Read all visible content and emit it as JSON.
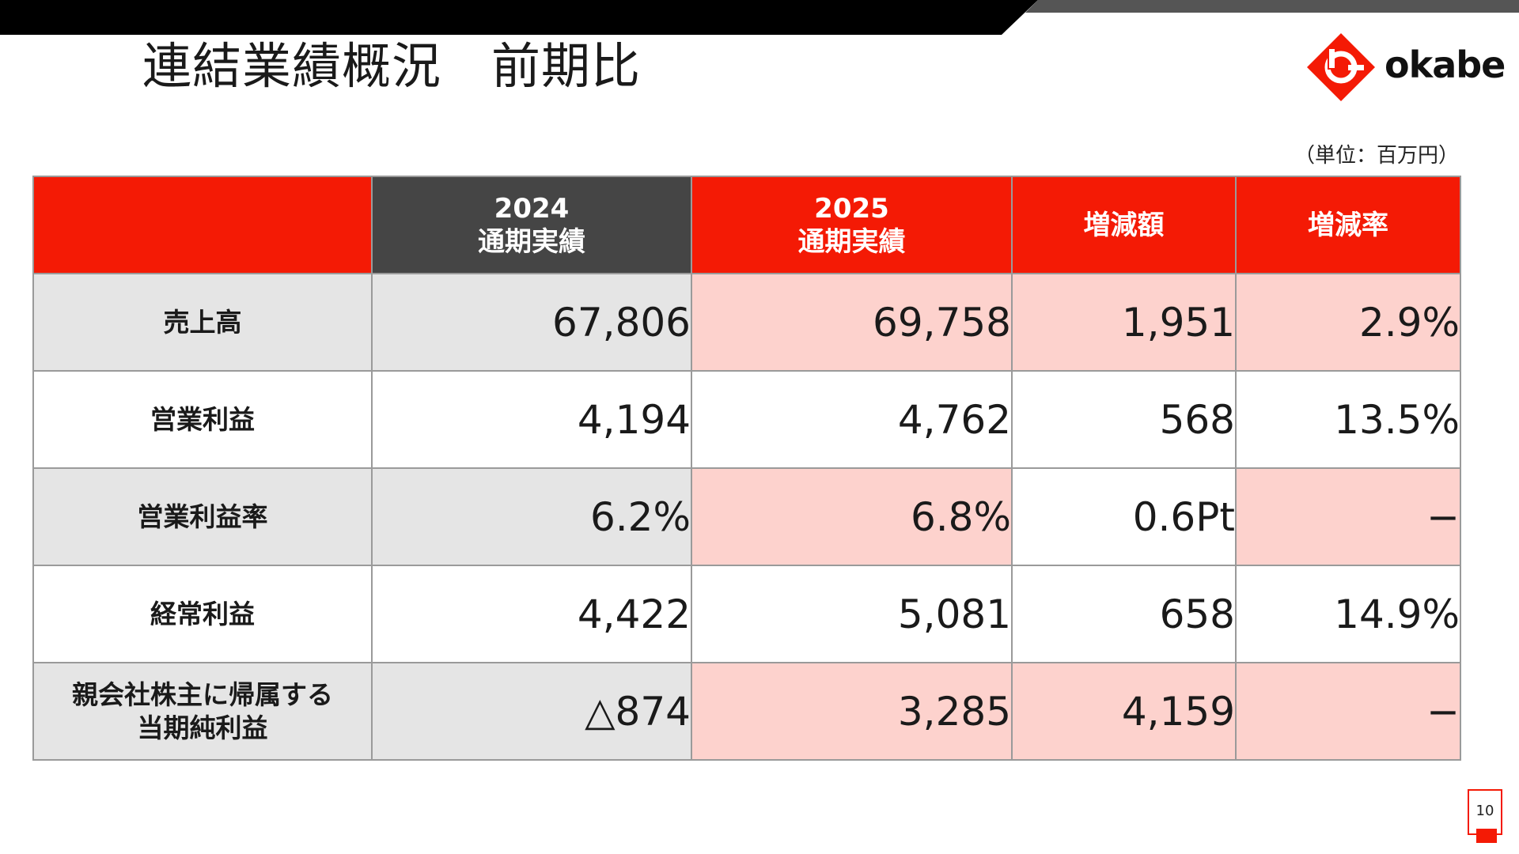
{
  "page": {
    "title": "連結業績概況　前期比",
    "unit_note": "（単位：百万円）",
    "page_number": "10"
  },
  "logo": {
    "text": "okabe",
    "brand_color": "#f41a05"
  },
  "colors": {
    "accent_red": "#f41a05",
    "header_dark": "#454545",
    "row_gray": "#e5e5e5",
    "row_pink": "#fdd2cd"
  },
  "table": {
    "headers": {
      "corner": "",
      "col_2024": "2024\n通期実績",
      "col_2025": "2025\n通期実績",
      "col_diff": "増減額",
      "col_rate": "増減率"
    },
    "rows": [
      {
        "label": "売上高",
        "v2024": "67,806",
        "v2025": "69,758",
        "diff": "1,951",
        "rate": "2.9%"
      },
      {
        "label": "営業利益",
        "v2024": "4,194",
        "v2025": "4,762",
        "diff": "568",
        "rate": "13.5%"
      },
      {
        "label": "営業利益率",
        "v2024": "6.2%",
        "v2025": "6.8%",
        "diff": "0.6Pt",
        "rate": "−"
      },
      {
        "label": "経常利益",
        "v2024": "4,422",
        "v2025": "5,081",
        "diff": "658",
        "rate": "14.9%"
      },
      {
        "label": "親会社株主に帰属する\n当期純利益",
        "v2024": "△874",
        "v2025": "3,285",
        "diff": "4,159",
        "rate": "−"
      }
    ]
  }
}
